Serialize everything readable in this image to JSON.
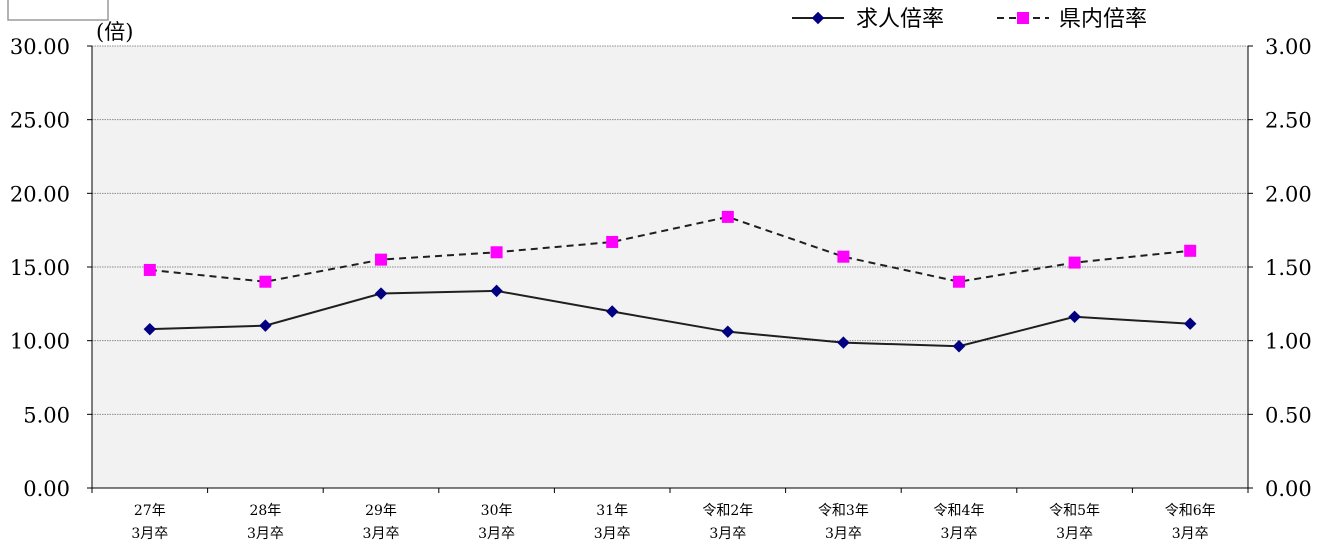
{
  "chart_data": {
    "type": "line",
    "title": "",
    "unit_label": "(倍)",
    "categories": [
      [
        "27年",
        "3月卒"
      ],
      [
        "28年",
        "3月卒"
      ],
      [
        "29年",
        "3月卒"
      ],
      [
        "30年",
        "3月卒"
      ],
      [
        "31年",
        "3月卒"
      ],
      [
        "令和2年",
        "3月卒"
      ],
      [
        "令和3年",
        "3月卒"
      ],
      [
        "令和4年",
        "3月卒"
      ],
      [
        "令和5年",
        "3月卒"
      ],
      [
        "令和6年",
        "3月卒"
      ]
    ],
    "y_left": {
      "range": [
        0,
        30
      ],
      "ticks": [
        "0.00",
        "5.00",
        "10.00",
        "15.00",
        "20.00",
        "25.00",
        "30.00"
      ]
    },
    "y_right": {
      "range": [
        0,
        3
      ],
      "ticks": [
        "0.00",
        "0.50",
        "1.00",
        "1.50",
        "2.00",
        "2.50",
        "3.00"
      ]
    },
    "grid": true,
    "legend_position": "top-right",
    "series": [
      {
        "name": "求人倍率",
        "axis": "left",
        "color": "#1f1f1f",
        "marker_color": "#000080",
        "marker": "diamond",
        "line_style": "solid",
        "values": [
          10.78,
          11.02,
          13.2,
          13.38,
          11.98,
          10.61,
          9.87,
          9.62,
          11.62,
          11.15
        ]
      },
      {
        "name": "県内倍率",
        "axis": "right",
        "color": "#1f1f1f",
        "marker_color": "#ff00ff",
        "marker": "square",
        "line_style": "dashed",
        "values": [
          1.48,
          1.4,
          1.55,
          1.6,
          1.67,
          1.84,
          1.57,
          1.4,
          1.53,
          1.61
        ]
      }
    ]
  }
}
